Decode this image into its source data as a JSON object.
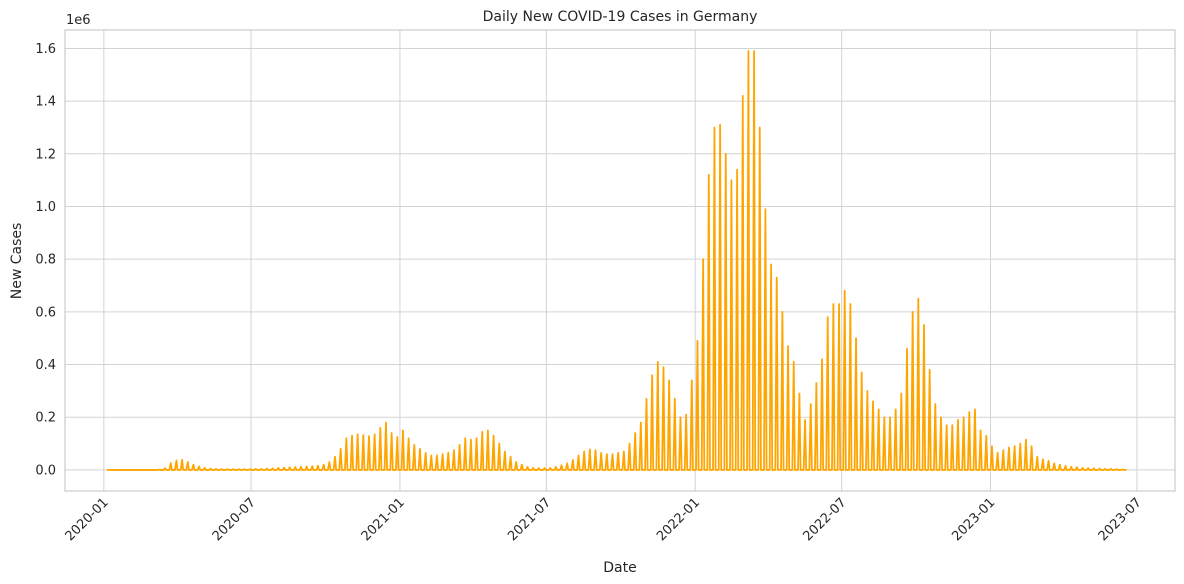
{
  "chart_data": {
    "type": "line",
    "title": "Daily New COVID-19 Cases in Germany",
    "xlabel": "Date",
    "ylabel": "New Cases",
    "y_multiplier_label": "1e6",
    "ylim": [
      -0.08,
      1.67
    ],
    "xlim": [
      "2019-11-14",
      "2023-08-17"
    ],
    "x_ticks": [
      "2020-01",
      "2020-07",
      "2021-01",
      "2021-07",
      "2022-01",
      "2022-07",
      "2023-01",
      "2023-07"
    ],
    "y_ticks": [
      "0.0",
      "0.2",
      "0.4",
      "0.6",
      "0.8",
      "1.0",
      "1.2",
      "1.4",
      "1.6"
    ],
    "grid": true,
    "legend": "none",
    "colors": {
      "series": "#ffa500",
      "grid": "#d3d3d3",
      "spine": "#cccccc",
      "text": "#262626"
    },
    "series": [
      {
        "weekly_start": "2020-01-05",
        "interval_days": 7,
        "values": [
          0.0,
          0.0,
          0.0,
          0.0,
          0.0,
          0.0,
          0.0,
          0.0,
          0.0,
          0.001,
          0.007,
          0.026,
          0.036,
          0.038,
          0.03,
          0.02,
          0.013,
          0.008,
          0.005,
          0.004,
          0.003,
          0.003,
          0.003,
          0.003,
          0.003,
          0.003,
          0.004,
          0.004,
          0.005,
          0.006,
          0.008,
          0.009,
          0.01,
          0.011,
          0.012,
          0.013,
          0.014,
          0.016,
          0.02,
          0.03,
          0.05,
          0.08,
          0.12,
          0.13,
          0.135,
          0.132,
          0.128,
          0.135,
          0.16,
          0.18,
          0.14,
          0.125,
          0.15,
          0.12,
          0.095,
          0.08,
          0.065,
          0.055,
          0.055,
          0.06,
          0.065,
          0.075,
          0.095,
          0.12,
          0.115,
          0.12,
          0.145,
          0.15,
          0.13,
          0.1,
          0.07,
          0.05,
          0.03,
          0.02,
          0.012,
          0.008,
          0.007,
          0.007,
          0.008,
          0.012,
          0.018,
          0.025,
          0.038,
          0.055,
          0.07,
          0.078,
          0.075,
          0.065,
          0.06,
          0.06,
          0.065,
          0.07,
          0.1,
          0.14,
          0.18,
          0.27,
          0.36,
          0.41,
          0.39,
          0.34,
          0.27,
          0.2,
          0.21,
          0.34,
          0.49,
          0.8,
          1.12,
          1.3,
          1.31,
          1.2,
          1.1,
          1.14,
          1.42,
          1.59,
          1.59,
          1.3,
          0.99,
          0.78,
          0.73,
          0.6,
          0.47,
          0.41,
          0.29,
          0.19,
          0.25,
          0.33,
          0.42,
          0.58,
          0.63,
          0.63,
          0.68,
          0.63,
          0.5,
          0.37,
          0.3,
          0.26,
          0.23,
          0.2,
          0.2,
          0.23,
          0.29,
          0.46,
          0.6,
          0.65,
          0.55,
          0.38,
          0.25,
          0.2,
          0.17,
          0.17,
          0.19,
          0.2,
          0.22,
          0.23,
          0.15,
          0.13,
          0.09,
          0.065,
          0.075,
          0.085,
          0.09,
          0.1,
          0.115,
          0.09,
          0.05,
          0.04,
          0.035,
          0.025,
          0.02,
          0.015,
          0.012,
          0.01,
          0.008,
          0.007,
          0.006,
          0.005,
          0.004,
          0.004,
          0.003,
          0.002
        ]
      }
    ]
  }
}
